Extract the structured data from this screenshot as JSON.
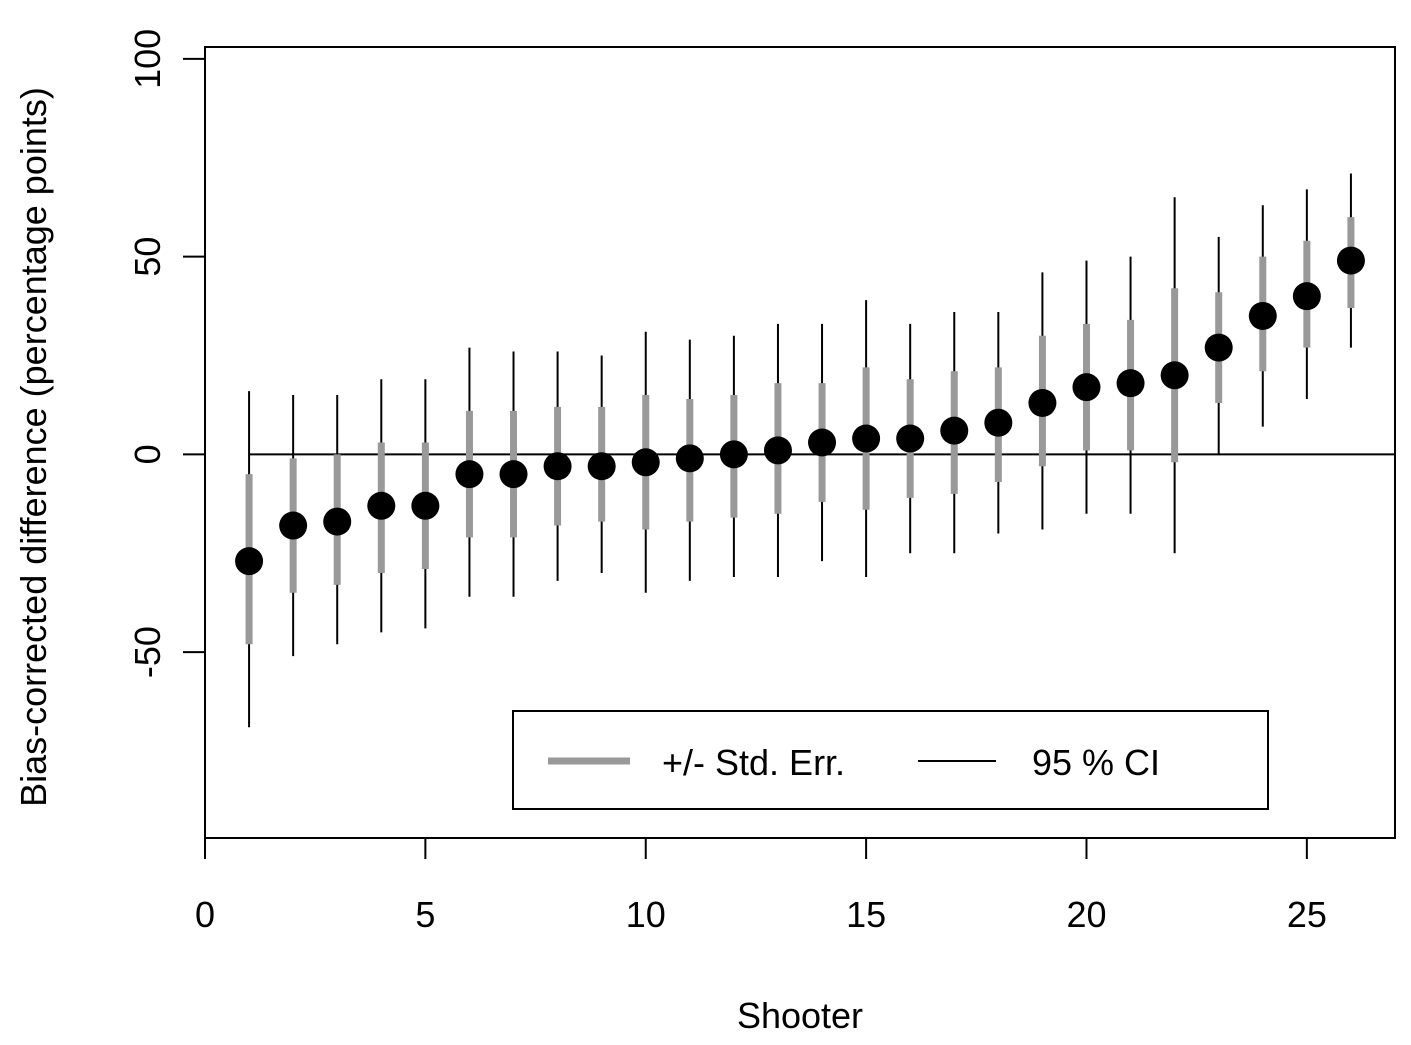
{
  "chart_data": {
    "type": "scatter",
    "title": "",
    "xlabel": "Shooter",
    "ylabel": "Bias-corrected difference (percentage points)",
    "xlim": [
      0,
      27
    ],
    "ylim": [
      -97,
      103
    ],
    "x_ticks": [
      0,
      5,
      10,
      15,
      20,
      25
    ],
    "y_ticks": [
      -50,
      0,
      50,
      100
    ],
    "reference_line": {
      "y": 0,
      "x_from": 1,
      "x_to": 27
    },
    "legend": {
      "position": "bottom-right",
      "se_label": "+/- Std. Err.",
      "ci_label": "95 % CI"
    },
    "colors": {
      "point": "#000000",
      "se_bar": "#999999",
      "ci_line": "#000000"
    },
    "points": [
      {
        "x": 1,
        "y": -27,
        "se_low": -48,
        "se_high": -5,
        "ci_low": -69,
        "ci_high": 16
      },
      {
        "x": 2,
        "y": -18,
        "se_low": -35,
        "se_high": -1,
        "ci_low": -51,
        "ci_high": 15
      },
      {
        "x": 3,
        "y": -17,
        "se_low": -33,
        "se_high": 0,
        "ci_low": -48,
        "ci_high": 15
      },
      {
        "x": 4,
        "y": -13,
        "se_low": -30,
        "se_high": 3,
        "ci_low": -45,
        "ci_high": 19
      },
      {
        "x": 5,
        "y": -13,
        "se_low": -29,
        "se_high": 3,
        "ci_low": -44,
        "ci_high": 19
      },
      {
        "x": 6,
        "y": -5,
        "se_low": -21,
        "se_high": 11,
        "ci_low": -36,
        "ci_high": 27
      },
      {
        "x": 7,
        "y": -5,
        "se_low": -21,
        "se_high": 11,
        "ci_low": -36,
        "ci_high": 26
      },
      {
        "x": 8,
        "y": -3,
        "se_low": -18,
        "se_high": 12,
        "ci_low": -32,
        "ci_high": 26
      },
      {
        "x": 9,
        "y": -3,
        "se_low": -17,
        "se_high": 12,
        "ci_low": -30,
        "ci_high": 25
      },
      {
        "x": 10,
        "y": -2,
        "se_low": -19,
        "se_high": 15,
        "ci_low": -35,
        "ci_high": 31
      },
      {
        "x": 11,
        "y": -1,
        "se_low": -17,
        "se_high": 14,
        "ci_low": -32,
        "ci_high": 29
      },
      {
        "x": 12,
        "y": 0,
        "se_low": -16,
        "se_high": 15,
        "ci_low": -31,
        "ci_high": 30
      },
      {
        "x": 13,
        "y": 1,
        "se_low": -15,
        "se_high": 18,
        "ci_low": -31,
        "ci_high": 33
      },
      {
        "x": 14,
        "y": 3,
        "se_low": -12,
        "se_high": 18,
        "ci_low": -27,
        "ci_high": 33
      },
      {
        "x": 15,
        "y": 4,
        "se_low": -14,
        "se_high": 22,
        "ci_low": -31,
        "ci_high": 39
      },
      {
        "x": 16,
        "y": 4,
        "se_low": -11,
        "se_high": 19,
        "ci_low": -25,
        "ci_high": 33
      },
      {
        "x": 17,
        "y": 6,
        "se_low": -10,
        "se_high": 21,
        "ci_low": -25,
        "ci_high": 36
      },
      {
        "x": 18,
        "y": 8,
        "se_low": -7,
        "se_high": 22,
        "ci_low": -20,
        "ci_high": 36
      },
      {
        "x": 19,
        "y": 13,
        "se_low": -3,
        "se_high": 30,
        "ci_low": -19,
        "ci_high": 46
      },
      {
        "x": 20,
        "y": 17,
        "se_low": 1,
        "se_high": 33,
        "ci_low": -15,
        "ci_high": 49
      },
      {
        "x": 21,
        "y": 18,
        "se_low": 1,
        "se_high": 34,
        "ci_low": -15,
        "ci_high": 50
      },
      {
        "x": 22,
        "y": 20,
        "se_low": -2,
        "se_high": 42,
        "ci_low": -25,
        "ci_high": 65
      },
      {
        "x": 23,
        "y": 27,
        "se_low": 13,
        "se_high": 41,
        "ci_low": 0,
        "ci_high": 55
      },
      {
        "x": 24,
        "y": 35,
        "se_low": 21,
        "se_high": 50,
        "ci_low": 7,
        "ci_high": 63
      },
      {
        "x": 25,
        "y": 40,
        "se_low": 27,
        "se_high": 54,
        "ci_low": 14,
        "ci_high": 67
      },
      {
        "x": 26,
        "y": 49,
        "se_low": 37,
        "se_high": 60,
        "ci_low": 27,
        "ci_high": 71
      }
    ]
  }
}
